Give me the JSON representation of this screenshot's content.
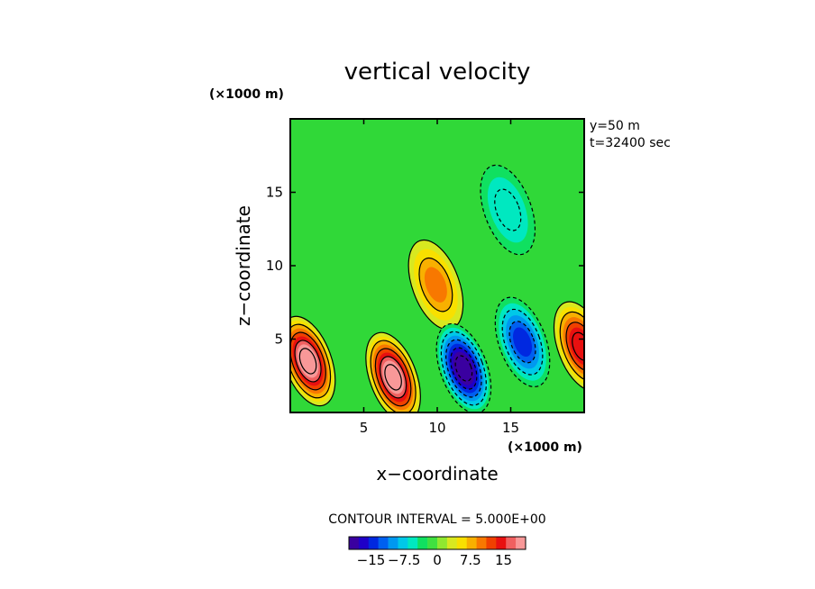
{
  "chart_data": {
    "type": "heatmap",
    "title": "vertical velocity",
    "xlabel": "x−coordinate",
    "ylabel": "z−coordinate",
    "x_unit": "(×1000 m)",
    "y_unit": "(×1000 m)",
    "xlim": [
      0,
      20
    ],
    "ylim": [
      0,
      20
    ],
    "xticks": [
      "5",
      "10",
      "15"
    ],
    "yticks": [
      "5",
      "10",
      "15"
    ],
    "annotations": [
      "y=50  m",
      "t=32400 sec"
    ],
    "contour_interval_label": "CONTOUR INTERVAL = 5.000E+00",
    "colorbar": {
      "ticks": [
        "−15",
        "−7.5",
        "0",
        "7.5",
        "15"
      ],
      "range": [
        -20,
        20
      ],
      "colors": [
        "#3a00a0",
        "#1f00c8",
        "#0028e0",
        "#0060f0",
        "#0098f0",
        "#00c8e8",
        "#00e8c0",
        "#10e060",
        "#40e040",
        "#90e830",
        "#d8e820",
        "#f8e000",
        "#f8b000",
        "#f87800",
        "#f04000",
        "#e81010",
        "#f06060",
        "#f89898"
      ]
    },
    "features": [
      {
        "x": 1.2,
        "z": 3.5,
        "w": 22,
        "kind": "updraft"
      },
      {
        "x": 7.0,
        "z": 2.4,
        "w": 22,
        "kind": "updraft"
      },
      {
        "x": 19.8,
        "z": 4.5,
        "w": 15,
        "kind": "updraft"
      },
      {
        "x": 9.9,
        "z": 8.7,
        "w": 9,
        "kind": "updraft"
      },
      {
        "x": 11.8,
        "z": 3.0,
        "w": -22,
        "kind": "downdraft"
      },
      {
        "x": 15.8,
        "z": 4.8,
        "w": -14,
        "kind": "downdraft"
      },
      {
        "x": 14.8,
        "z": 13.8,
        "w": -6,
        "kind": "downdraft"
      }
    ]
  }
}
